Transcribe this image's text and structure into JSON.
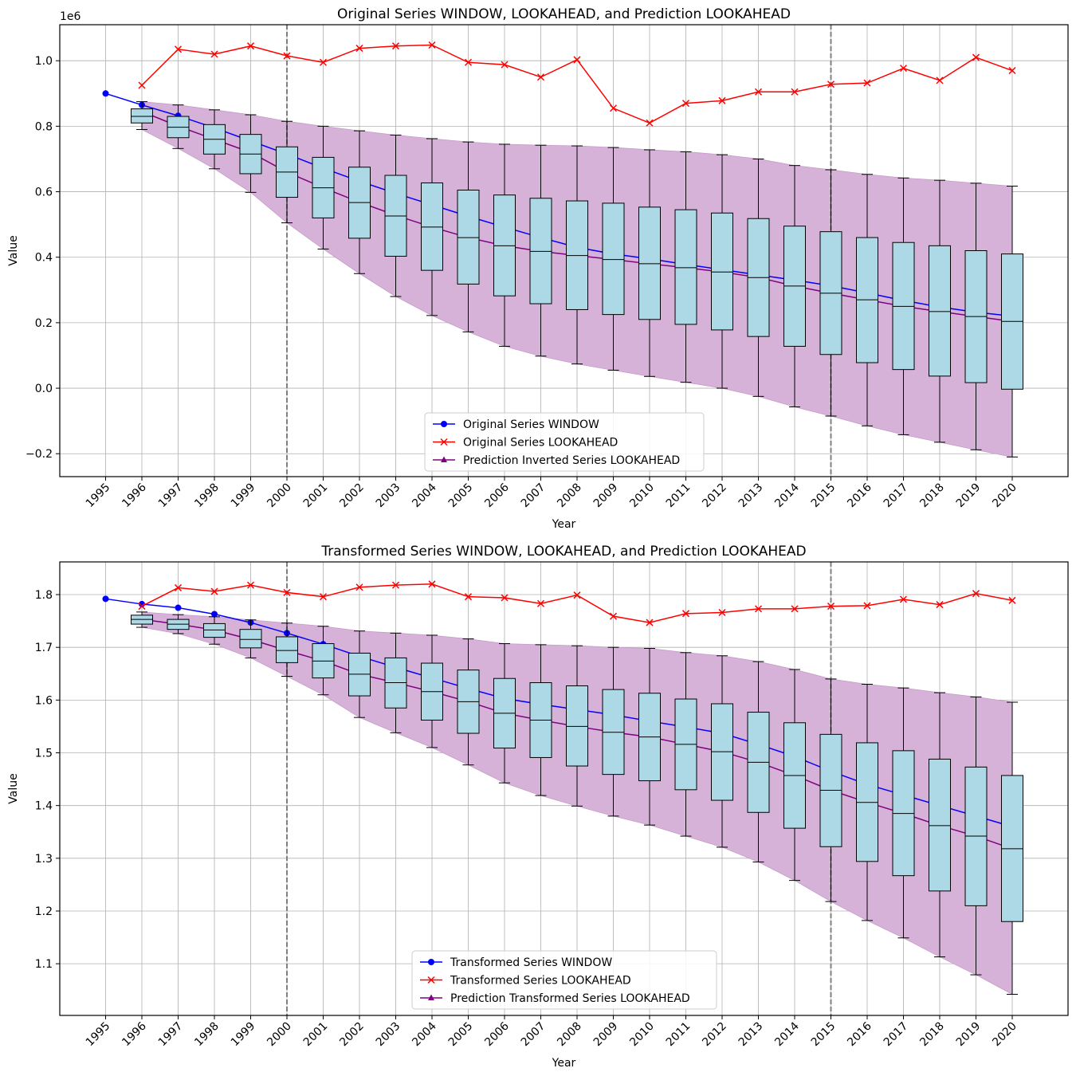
{
  "chart_data": [
    {
      "type": "line",
      "title": "Original Series WINDOW, LOOKAHEAD, and Prediction LOOKAHEAD",
      "xlabel": "Year",
      "ylabel": "Value",
      "y_offset_label": "1e6",
      "ylim": [
        -0.27,
        1.11
      ],
      "yticks": [
        -0.2,
        0.0,
        0.2,
        0.4,
        0.6,
        0.8,
        1.0
      ],
      "ytick_labels": [
        "−0.2",
        "0.0",
        "0.2",
        "0.4",
        "0.6",
        "0.8",
        "1.0"
      ],
      "years": [
        "1995",
        "1996",
        "1997",
        "1998",
        "1999",
        "2000",
        "2001",
        "2002",
        "2003",
        "2004",
        "2005",
        "2006",
        "2007",
        "2008",
        "2009",
        "2010",
        "2011",
        "2012",
        "2013",
        "2014",
        "2015",
        "2016",
        "2017",
        "2018",
        "2019",
        "2020"
      ],
      "grid": true,
      "legend_position": "lower-center",
      "vlines": [
        "2000",
        "2015"
      ],
      "window": {
        "name": "Original Series WINDOW",
        "color": "#0000ff",
        "years": [
          "1995",
          "1996",
          "1997",
          "1998",
          "1999",
          "2000",
          "2001",
          "2002",
          "2003",
          "2004",
          "2005",
          "2006",
          "2007",
          "2008",
          "2009",
          "2010",
          "2011",
          "2012",
          "2013",
          "2014",
          "2015",
          "2016",
          "2017",
          "2018",
          "2019",
          "2020"
        ],
        "values": [
          0.9,
          0.865,
          0.832,
          0.795,
          0.755,
          0.715,
          0.672,
          0.632,
          0.595,
          0.56,
          0.525,
          0.492,
          0.46,
          0.43,
          0.41,
          0.395,
          0.378,
          0.362,
          0.346,
          0.33,
          0.313,
          0.291,
          0.268,
          0.248,
          0.232,
          0.22
        ]
      },
      "lookahead": {
        "name": "Original Series LOOKAHEAD",
        "color": "#ff0000",
        "years": [
          "1996",
          "1997",
          "1998",
          "1999",
          "2000",
          "2001",
          "2002",
          "2003",
          "2004",
          "2005",
          "2006",
          "2007",
          "2008",
          "2009",
          "2010",
          "2011",
          "2012",
          "2013",
          "2014",
          "2015",
          "2016",
          "2017",
          "2018",
          "2019",
          "2020"
        ],
        "values": [
          0.925,
          1.035,
          1.02,
          1.045,
          1.015,
          0.995,
          1.038,
          1.045,
          1.048,
          0.995,
          0.988,
          0.95,
          1.003,
          0.855,
          0.81,
          0.87,
          0.878,
          0.905,
          0.905,
          0.928,
          0.932,
          0.977,
          0.94,
          1.01,
          0.97
        ]
      },
      "prediction": {
        "name": "Prediction Inverted Series LOOKAHEAD",
        "color": "#800080",
        "years": [
          "1996",
          "1997",
          "1998",
          "1999",
          "2000",
          "2001",
          "2002",
          "2003",
          "2004",
          "2005",
          "2006",
          "2007",
          "2008",
          "2009",
          "2010",
          "2011",
          "2012",
          "2013",
          "2014",
          "2015",
          "2016",
          "2017",
          "2018",
          "2019",
          "2020"
        ],
        "values": [
          0.845,
          0.8,
          0.76,
          0.72,
          0.66,
          0.612,
          0.568,
          0.528,
          0.492,
          0.46,
          0.435,
          0.418,
          0.405,
          0.393,
          0.38,
          0.368,
          0.355,
          0.338,
          0.312,
          0.29,
          0.27,
          0.25,
          0.234,
          0.219,
          0.204
        ]
      },
      "band": {
        "color": "#d6b2d9",
        "years": [
          "1996",
          "1997",
          "1998",
          "1999",
          "2000",
          "2001",
          "2002",
          "2003",
          "2004",
          "2005",
          "2006",
          "2007",
          "2008",
          "2009",
          "2010",
          "2011",
          "2012",
          "2013",
          "2014",
          "2015",
          "2016",
          "2017",
          "2018",
          "2019",
          "2020"
        ],
        "upper": [
          0.875,
          0.865,
          0.85,
          0.835,
          0.815,
          0.8,
          0.786,
          0.773,
          0.762,
          0.752,
          0.745,
          0.742,
          0.74,
          0.735,
          0.728,
          0.722,
          0.713,
          0.7,
          0.68,
          0.667,
          0.653,
          0.642,
          0.635,
          0.626,
          0.617
        ],
        "lower": [
          0.79,
          0.732,
          0.67,
          0.598,
          0.505,
          0.425,
          0.35,
          0.28,
          0.222,
          0.172,
          0.128,
          0.098,
          0.074,
          0.055,
          0.036,
          0.018,
          0.0,
          -0.025,
          -0.057,
          -0.085,
          -0.115,
          -0.142,
          -0.165,
          -0.188,
          -0.21
        ]
      },
      "boxes": {
        "color": "#add8e6",
        "years": [
          "1996",
          "1997",
          "1998",
          "1999",
          "2000",
          "2001",
          "2002",
          "2003",
          "2004",
          "2005",
          "2006",
          "2007",
          "2008",
          "2009",
          "2010",
          "2011",
          "2012",
          "2013",
          "2014",
          "2015",
          "2016",
          "2017",
          "2018",
          "2019",
          "2020"
        ],
        "whislo": [
          0.79,
          0.732,
          0.67,
          0.598,
          0.505,
          0.425,
          0.35,
          0.28,
          0.222,
          0.172,
          0.128,
          0.098,
          0.074,
          0.055,
          0.036,
          0.018,
          0.0,
          -0.025,
          -0.057,
          -0.085,
          -0.115,
          -0.142,
          -0.165,
          -0.188,
          -0.21
        ],
        "q1": [
          0.81,
          0.765,
          0.715,
          0.655,
          0.583,
          0.52,
          0.458,
          0.403,
          0.36,
          0.318,
          0.282,
          0.258,
          0.24,
          0.225,
          0.21,
          0.195,
          0.178,
          0.158,
          0.128,
          0.103,
          0.078,
          0.057,
          0.037,
          0.017,
          -0.003
        ],
        "med": [
          0.83,
          0.797,
          0.76,
          0.715,
          0.66,
          0.612,
          0.567,
          0.526,
          0.492,
          0.46,
          0.435,
          0.418,
          0.405,
          0.393,
          0.38,
          0.368,
          0.355,
          0.338,
          0.312,
          0.29,
          0.27,
          0.25,
          0.234,
          0.219,
          0.204
        ],
        "q3": [
          0.853,
          0.83,
          0.805,
          0.775,
          0.737,
          0.705,
          0.675,
          0.65,
          0.627,
          0.605,
          0.59,
          0.58,
          0.572,
          0.565,
          0.553,
          0.545,
          0.535,
          0.518,
          0.495,
          0.478,
          0.46,
          0.445,
          0.435,
          0.42,
          0.41
        ],
        "whishi": [
          0.875,
          0.865,
          0.85,
          0.835,
          0.815,
          0.8,
          0.786,
          0.773,
          0.762,
          0.752,
          0.745,
          0.742,
          0.74,
          0.735,
          0.728,
          0.722,
          0.713,
          0.7,
          0.68,
          0.667,
          0.653,
          0.642,
          0.635,
          0.626,
          0.617
        ]
      }
    },
    {
      "type": "line",
      "title": "Transformed Series WINDOW, LOOKAHEAD, and Prediction LOOKAHEAD",
      "xlabel": "Year",
      "ylabel": "Value",
      "y_offset_label": "",
      "ylim": [
        1.002,
        1.862
      ],
      "yticks": [
        1.1,
        1.2,
        1.3,
        1.4,
        1.5,
        1.6,
        1.7,
        1.8
      ],
      "ytick_labels": [
        "1.1",
        "1.2",
        "1.3",
        "1.4",
        "1.5",
        "1.6",
        "1.7",
        "1.8"
      ],
      "years": [
        "1995",
        "1996",
        "1997",
        "1998",
        "1999",
        "2000",
        "2001",
        "2002",
        "2003",
        "2004",
        "2005",
        "2006",
        "2007",
        "2008",
        "2009",
        "2010",
        "2011",
        "2012",
        "2013",
        "2014",
        "2015",
        "2016",
        "2017",
        "2018",
        "2019",
        "2020"
      ],
      "grid": true,
      "legend_position": "lower-center",
      "vlines": [
        "2000",
        "2015"
      ],
      "window": {
        "name": "Transformed Series WINDOW",
        "color": "#0000ff",
        "years": [
          "1995",
          "1996",
          "1997",
          "1998",
          "1999",
          "2000",
          "2001",
          "2002",
          "2003",
          "2004",
          "2005",
          "2006",
          "2007",
          "2008",
          "2009",
          "2010",
          "2011",
          "2012",
          "2013",
          "2014",
          "2015",
          "2016",
          "2017",
          "2018",
          "2019",
          "2020"
        ],
        "values": [
          1.792,
          1.782,
          1.775,
          1.763,
          1.747,
          1.727,
          1.706,
          1.683,
          1.662,
          1.642,
          1.622,
          1.603,
          1.592,
          1.582,
          1.572,
          1.56,
          1.549,
          1.537,
          1.516,
          1.493,
          1.465,
          1.44,
          1.42,
          1.4,
          1.38,
          1.36
        ]
      },
      "lookahead": {
        "name": "Transformed Series LOOKAHEAD",
        "color": "#ff0000",
        "years": [
          "1996",
          "1997",
          "1998",
          "1999",
          "2000",
          "2001",
          "2002",
          "2003",
          "2004",
          "2005",
          "2006",
          "2007",
          "2008",
          "2009",
          "2010",
          "2011",
          "2012",
          "2013",
          "2014",
          "2015",
          "2016",
          "2017",
          "2018",
          "2019",
          "2020"
        ],
        "values": [
          1.778,
          1.813,
          1.806,
          1.818,
          1.804,
          1.796,
          1.814,
          1.818,
          1.82,
          1.796,
          1.794,
          1.783,
          1.799,
          1.759,
          1.747,
          1.764,
          1.766,
          1.773,
          1.773,
          1.778,
          1.779,
          1.791,
          1.781,
          1.802,
          1.789
        ]
      },
      "prediction": {
        "name": "Prediction Transformed Series LOOKAHEAD",
        "color": "#800080",
        "years": [
          "1996",
          "1997",
          "1998",
          "1999",
          "2000",
          "2001",
          "2002",
          "2003",
          "2004",
          "2005",
          "2006",
          "2007",
          "2008",
          "2009",
          "2010",
          "2011",
          "2012",
          "2013",
          "2014",
          "2015",
          "2016",
          "2017",
          "2018",
          "2019",
          "2020"
        ],
        "values": [
          1.753,
          1.744,
          1.733,
          1.715,
          1.694,
          1.674,
          1.649,
          1.633,
          1.616,
          1.597,
          1.575,
          1.562,
          1.55,
          1.539,
          1.53,
          1.516,
          1.502,
          1.482,
          1.457,
          1.429,
          1.406,
          1.385,
          1.362,
          1.342,
          1.318
        ]
      },
      "band": {
        "color": "#d6b2d9",
        "years": [
          "1996",
          "1997",
          "1998",
          "1999",
          "2000",
          "2001",
          "2002",
          "2003",
          "2004",
          "2005",
          "2006",
          "2007",
          "2008",
          "2009",
          "2010",
          "2011",
          "2012",
          "2013",
          "2014",
          "2015",
          "2016",
          "2017",
          "2018",
          "2019",
          "2020"
        ],
        "upper": [
          1.767,
          1.762,
          1.758,
          1.752,
          1.746,
          1.74,
          1.731,
          1.727,
          1.723,
          1.716,
          1.707,
          1.705,
          1.703,
          1.7,
          1.698,
          1.69,
          1.684,
          1.673,
          1.658,
          1.64,
          1.63,
          1.623,
          1.614,
          1.606,
          1.596
        ],
        "lower": [
          1.738,
          1.726,
          1.706,
          1.68,
          1.645,
          1.61,
          1.567,
          1.538,
          1.51,
          1.477,
          1.443,
          1.419,
          1.399,
          1.38,
          1.363,
          1.342,
          1.321,
          1.293,
          1.258,
          1.218,
          1.182,
          1.149,
          1.113,
          1.079,
          1.042
        ]
      },
      "boxes": {
        "color": "#add8e6",
        "years": [
          "1996",
          "1997",
          "1998",
          "1999",
          "2000",
          "2001",
          "2002",
          "2003",
          "2004",
          "2005",
          "2006",
          "2007",
          "2008",
          "2009",
          "2010",
          "2011",
          "2012",
          "2013",
          "2014",
          "2015",
          "2016",
          "2017",
          "2018",
          "2019",
          "2020"
        ],
        "whislo": [
          1.738,
          1.726,
          1.706,
          1.68,
          1.645,
          1.61,
          1.567,
          1.538,
          1.51,
          1.477,
          1.443,
          1.419,
          1.399,
          1.38,
          1.363,
          1.342,
          1.321,
          1.293,
          1.258,
          1.218,
          1.182,
          1.149,
          1.113,
          1.079,
          1.042
        ],
        "q1": [
          1.744,
          1.734,
          1.719,
          1.699,
          1.671,
          1.642,
          1.608,
          1.585,
          1.562,
          1.537,
          1.509,
          1.491,
          1.475,
          1.459,
          1.447,
          1.43,
          1.41,
          1.387,
          1.357,
          1.322,
          1.294,
          1.267,
          1.238,
          1.21,
          1.18
        ],
        "med": [
          1.753,
          1.744,
          1.733,
          1.715,
          1.694,
          1.674,
          1.649,
          1.633,
          1.616,
          1.597,
          1.575,
          1.562,
          1.55,
          1.539,
          1.53,
          1.516,
          1.502,
          1.482,
          1.457,
          1.429,
          1.406,
          1.385,
          1.362,
          1.342,
          1.318
        ],
        "q3": [
          1.761,
          1.753,
          1.745,
          1.734,
          1.72,
          1.707,
          1.689,
          1.68,
          1.67,
          1.657,
          1.641,
          1.633,
          1.627,
          1.62,
          1.613,
          1.602,
          1.593,
          1.577,
          1.557,
          1.535,
          1.519,
          1.504,
          1.488,
          1.473,
          1.457
        ],
        "whishi": [
          1.767,
          1.762,
          1.758,
          1.752,
          1.746,
          1.74,
          1.731,
          1.727,
          1.723,
          1.716,
          1.707,
          1.705,
          1.703,
          1.7,
          1.698,
          1.69,
          1.684,
          1.673,
          1.658,
          1.64,
          1.63,
          1.623,
          1.614,
          1.606,
          1.596
        ]
      }
    }
  ]
}
